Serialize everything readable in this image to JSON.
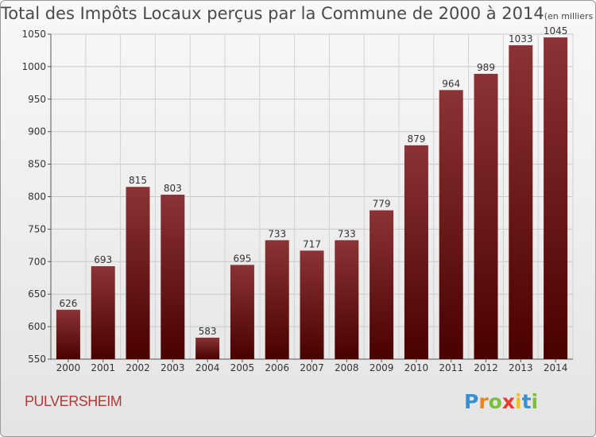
{
  "chart_data": {
    "type": "bar",
    "title": "Total des Impôts Locaux perçus par la Commune de 2000 à 2014",
    "unit_label": "(en milliers d'€)",
    "categories": [
      "2000",
      "2001",
      "2002",
      "2003",
      "2004",
      "2005",
      "2006",
      "2007",
      "2008",
      "2009",
      "2010",
      "2011",
      "2012",
      "2013",
      "2014"
    ],
    "values": [
      626,
      693,
      815,
      803,
      583,
      695,
      733,
      717,
      733,
      779,
      879,
      964,
      989,
      1033,
      1045
    ],
    "ylim": [
      550,
      1050
    ],
    "yticks": [
      550,
      600,
      650,
      700,
      750,
      800,
      850,
      900,
      950,
      1000,
      1050
    ],
    "xlabel": "",
    "ylabel": "",
    "grid": true,
    "bar_color_top": "#8b3336",
    "bar_color_bottom": "#4a0000"
  },
  "commune": "PULVERSHEIM",
  "logo": {
    "letters": [
      "P",
      "r",
      "o",
      "x",
      "i",
      "t",
      "i"
    ],
    "colors": [
      "#3a8fd0",
      "#e8861c",
      "#7bbf3a",
      "#e63b2e",
      "#f3c21a",
      "#3a8fd0",
      "#7bbf3a"
    ]
  }
}
